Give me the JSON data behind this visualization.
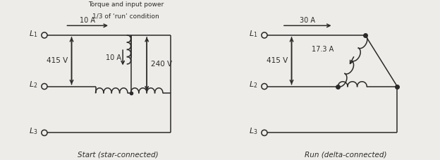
{
  "bg_color": "#eeece8",
  "line_color": "#2a2a2a",
  "left_title1": "Torque and input power",
  "left_title2": "1/3 of ‘run’ condition",
  "left_caption": "Start (star-connected)",
  "right_caption": "Run (delta-connected)",
  "left_current_label": "10 A",
  "right_current_label": "30 A",
  "left_voltage_label": "415 V",
  "right_voltage_label": "415 V",
  "left_winding_current_label": "10 A",
  "left_winding_voltage_label": "240 V",
  "right_winding_current_label": "17.3 A"
}
